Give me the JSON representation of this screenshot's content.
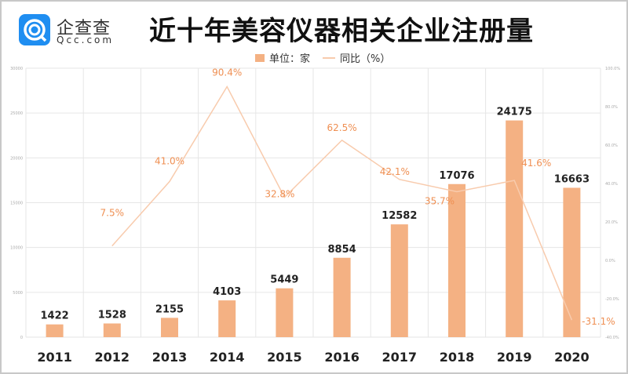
{
  "header": {
    "logo_name": "企查查",
    "logo_domain": "Qcc.com",
    "title": "近十年美容仪器相关企业注册量"
  },
  "chart_data": {
    "type": "bar+line",
    "title": "近十年美容仪器相关企业注册量",
    "categories": [
      "2011",
      "2012",
      "2013",
      "2014",
      "2015",
      "2016",
      "2017",
      "2018",
      "2019",
      "2020"
    ],
    "series": [
      {
        "name": "单位：家",
        "type": "bar",
        "axis": "left",
        "color": "#f4b183",
        "values": [
          1422,
          1528,
          2155,
          4103,
          5449,
          8854,
          12582,
          17076,
          24175,
          16663
        ],
        "labels": [
          "1422",
          "1528",
          "2155",
          "4103",
          "5449",
          "8854",
          "12582",
          "17076",
          "24175",
          "16663"
        ]
      },
      {
        "name": "同比（%）",
        "type": "line",
        "axis": "right",
        "color": "#f8cbad",
        "values": [
          null,
          7.5,
          41.0,
          90.4,
          32.8,
          62.5,
          42.1,
          35.7,
          41.6,
          -31.1
        ],
        "labels": [
          "",
          "7.5%",
          "41.0%",
          "90.4%",
          "32.8%",
          "62.5%",
          "42.1%",
          "35.7%",
          "41.6%",
          "-31.1%"
        ]
      }
    ],
    "left_axis": {
      "ylim": [
        0,
        30000
      ],
      "ticks": [
        "0",
        "5000",
        "10000",
        "15000",
        "20000",
        "25000",
        "30000"
      ]
    },
    "right_axis": {
      "ylim": [
        -40,
        100
      ],
      "ticks": [
        "-40.0%",
        "-20.0%",
        "0.0%",
        "20.0%",
        "40.0%",
        "60.0%",
        "80.0%",
        "100.0%"
      ]
    },
    "grid": true,
    "legend_position": "top-center"
  }
}
